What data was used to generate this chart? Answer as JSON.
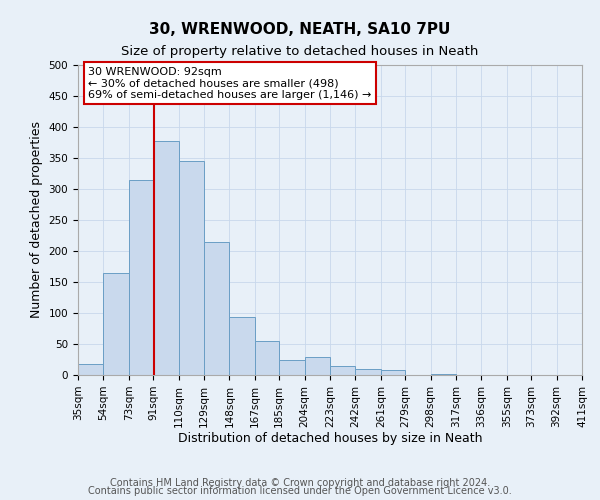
{
  "title": "30, WRENWOOD, NEATH, SA10 7PU",
  "subtitle": "Size of property relative to detached houses in Neath",
  "xlabel": "Distribution of detached houses by size in Neath",
  "ylabel": "Number of detached properties",
  "footer_line1": "Contains HM Land Registry data © Crown copyright and database right 2024.",
  "footer_line2": "Contains public sector information licensed under the Open Government Licence v3.0.",
  "bin_labels": [
    "35sqm",
    "54sqm",
    "73sqm",
    "91sqm",
    "110sqm",
    "129sqm",
    "148sqm",
    "167sqm",
    "185sqm",
    "204sqm",
    "223sqm",
    "242sqm",
    "261sqm",
    "279sqm",
    "298sqm",
    "317sqm",
    "336sqm",
    "355sqm",
    "373sqm",
    "392sqm",
    "411sqm"
  ],
  "bin_edges": [
    35,
    54,
    73,
    91,
    110,
    129,
    148,
    167,
    185,
    204,
    223,
    242,
    261,
    279,
    298,
    317,
    336,
    355,
    373,
    392,
    411
  ],
  "bar_values": [
    17,
    165,
    315,
    378,
    345,
    215,
    93,
    55,
    25,
    29,
    15,
    10,
    8,
    0,
    1,
    0,
    0,
    0,
    0,
    0
  ],
  "bar_facecolor": "#c9d9ed",
  "bar_edgecolor": "#6a9ec5",
  "property_line_x": 92,
  "property_line_color": "#cc0000",
  "annotation_text": "30 WRENWOOD: 92sqm\n← 30% of detached houses are smaller (498)\n69% of semi-detached houses are larger (1,146) →",
  "annotation_box_edgecolor": "#cc0000",
  "annotation_box_facecolor": "#ffffff",
  "ylim": [
    0,
    500
  ],
  "yticks": [
    0,
    50,
    100,
    150,
    200,
    250,
    300,
    350,
    400,
    450,
    500
  ],
  "grid_color": "#c8d8eb",
  "background_color": "#e8f0f8",
  "title_fontsize": 11,
  "subtitle_fontsize": 9.5,
  "axis_label_fontsize": 9,
  "tick_fontsize": 7.5,
  "footer_fontsize": 7
}
